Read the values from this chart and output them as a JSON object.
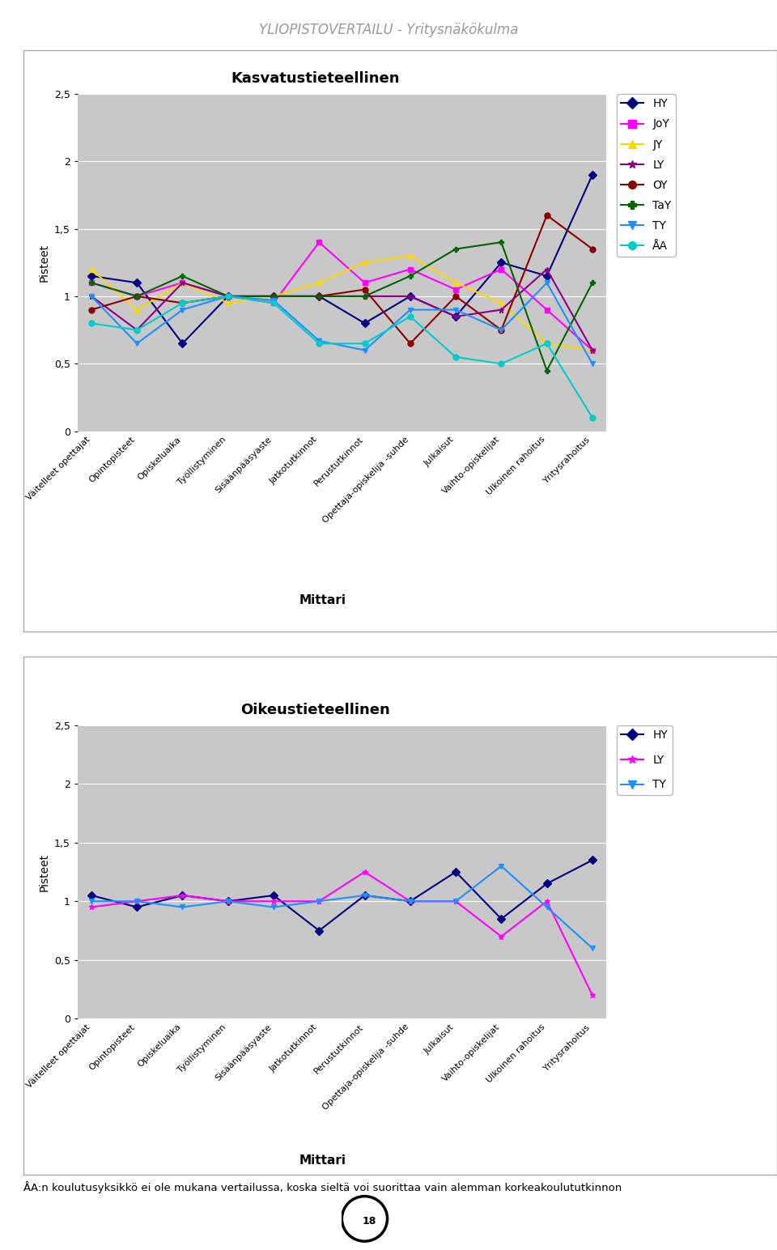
{
  "title_main": "YLIOPISTOVERTAILU - Yritysnäkökulma",
  "chart1_title": "Kasvatustieteellinen",
  "chart2_title": "Oikeustieteellinen",
  "xlabel": "Mittari",
  "ylabel": "Pisteet",
  "categories": [
    "Väitelleet opettajat",
    "Opintopisteet",
    "Opiskeluaika",
    "Työllistyminen",
    "Sisäänpääsyaste",
    "Jatkotutkinnot",
    "Perustutkinnot",
    "Opettaja-opiskelija -suhde",
    "Julkaisut",
    "Vaihto-opiskelijat",
    "Ulkoinen rahoitus",
    "Yritysrahoitus"
  ],
  "series1": {
    "HY": [
      1.15,
      1.1,
      0.65,
      1.0,
      1.0,
      1.0,
      0.8,
      1.0,
      0.85,
      1.25,
      1.15,
      1.9
    ],
    "JoY": [
      1.1,
      1.0,
      1.1,
      1.0,
      0.95,
      1.4,
      1.1,
      1.2,
      1.05,
      1.2,
      0.9,
      0.6
    ],
    "JY": [
      1.2,
      0.9,
      1.1,
      0.95,
      1.0,
      1.1,
      1.25,
      1.3,
      1.1,
      0.95,
      0.65,
      0.6
    ],
    "LY": [
      1.0,
      0.75,
      1.1,
      1.0,
      1.0,
      1.0,
      1.0,
      1.0,
      0.85,
      0.9,
      1.2,
      0.6
    ],
    "OY": [
      0.9,
      1.0,
      0.95,
      1.0,
      1.0,
      1.0,
      1.05,
      0.65,
      1.0,
      0.75,
      1.6,
      1.35
    ],
    "TaY": [
      1.1,
      1.0,
      1.15,
      1.0,
      1.0,
      1.0,
      1.0,
      1.15,
      1.35,
      1.4,
      0.45,
      1.1
    ],
    "TY": [
      1.0,
      0.65,
      0.9,
      1.0,
      0.97,
      0.67,
      0.6,
      0.9,
      0.9,
      0.75,
      1.1,
      0.5
    ],
    "AA": [
      0.8,
      0.75,
      0.95,
      1.0,
      0.95,
      0.65,
      0.65,
      0.85,
      0.55,
      0.5,
      0.65,
      0.1
    ]
  },
  "series2": {
    "HY": [
      1.05,
      0.95,
      1.05,
      1.0,
      1.05,
      0.75,
      1.05,
      1.0,
      1.25,
      0.85,
      1.15,
      1.35
    ],
    "LY": [
      0.95,
      1.0,
      1.05,
      1.0,
      1.0,
      1.0,
      1.25,
      1.0,
      1.0,
      0.7,
      1.0,
      0.2
    ],
    "TY": [
      1.0,
      1.0,
      0.95,
      1.0,
      0.95,
      1.0,
      1.05,
      1.0,
      1.0,
      1.3,
      0.95,
      0.6
    ]
  },
  "colors1": {
    "HY": "#000080",
    "JoY": "#FF00FF",
    "JY": "#FFD700",
    "LY": "#8B008B",
    "OY": "#8B0000",
    "TaY": "#006400",
    "TY": "#1E90FF",
    "AA": "#00CCCC"
  },
  "colors2": {
    "HY": "#000080",
    "LY": "#FF00FF",
    "TY": "#1E90FF"
  },
  "markers1": {
    "HY": "D",
    "JoY": "s",
    "JY": "^",
    "LY": "*",
    "OY": "o",
    "TaY": "P",
    "TY": "v",
    "AA": "o"
  },
  "markers2": {
    "HY": "D",
    "LY": "*",
    "TY": "v"
  },
  "legend1_labels": [
    "HY",
    "JoY",
    "JY",
    "LY",
    "OY",
    "TaY",
    "TY",
    "ÅA"
  ],
  "legend2_labels": [
    "HY",
    "LY",
    "TY"
  ],
  "footer_text": "ÅA:n koulutusyksikkö ei ole mukana vertailussa, koska sieltä voi suorittaa vain alemman korkeakoulututkinnon",
  "ylim": [
    0,
    2.5
  ],
  "yticks": [
    0,
    0.5,
    1.0,
    1.5,
    2.0,
    2.5
  ],
  "ytick_labels": [
    "0",
    "0,5",
    "1",
    "1,5",
    "2",
    "2,5"
  ],
  "bg_color": "#C8C8C8",
  "frame_color": "#AAAAAA"
}
